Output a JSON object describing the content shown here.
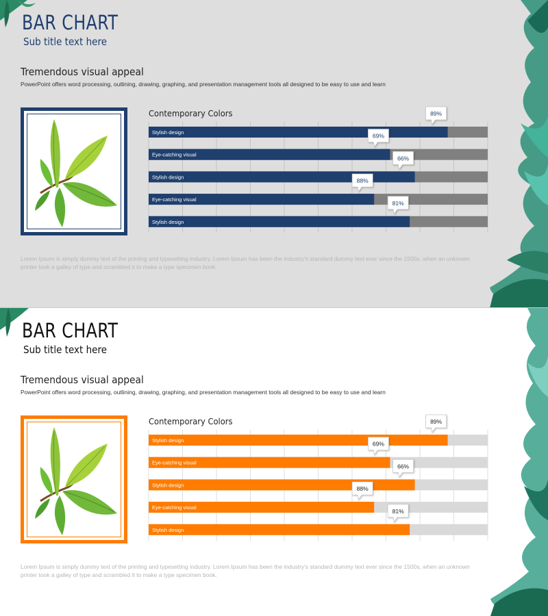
{
  "slides": [
    {
      "theme": "blue",
      "title": "BAR CHART",
      "subtitle": "Sub title text here",
      "heading": "Tremendous visual appeal",
      "description": "PowerPoint offers word processing, outlining, drawing, graphing, and presentation management tools all designed to be easy to use and learn",
      "lorem": "Lorem Ipsum is simply dummy text of the printing and typesetting industry. Lorem Ipsum has been the industry's standard dummy text ever since the 1500s, when an unknown printer took a galley of type and scrambled it to make a type specimen book.",
      "colors": {
        "title": "#1f3f6e",
        "subtitle": "#1f3f6e",
        "bar": "#1f3f6e",
        "track": "#808080",
        "frame": "#1f3f6e",
        "callout_text": "#1f3f6e",
        "bar_label": "#ffffff"
      }
    },
    {
      "theme": "orange",
      "title": "BAR CHART",
      "subtitle": "Sub title text here",
      "heading": "Tremendous visual appeal",
      "description": "PowerPoint offers word processing, outlining, drawing, graphing, and presentation management tools all designed to be easy to use and learn",
      "lorem": "Lorem Ipsum is simply dummy text of the printing and typesetting industry. Lorem Ipsum has been the industry's standard dummy text ever since the 1500s, when an unknown printer took a galley of type and scrambled it to make a type specimen book.",
      "colors": {
        "title": "#111111",
        "subtitle": "#111111",
        "bar": "#ff7c00",
        "track": "#d9d9d9",
        "frame": "#ff7c00",
        "callout_text": "#222222",
        "bar_label": "#ffffff"
      }
    }
  ],
  "chart_data": [
    {
      "type": "bar",
      "orientation": "horizontal",
      "title": "Contemporary Colors",
      "categories": [
        "Stylish design",
        "Eye-catching visual",
        "Stylish design",
        "Eye-catching visual",
        "Stylish design"
      ],
      "values": [
        89,
        69,
        66,
        88,
        81
      ],
      "value_labels": [
        "89%",
        "69%",
        "66%",
        "88%",
        "81%"
      ],
      "bar_fill_fraction": [
        0.882,
        0.712,
        0.785,
        0.665,
        0.77
      ],
      "grid": true
    },
    {
      "type": "bar",
      "orientation": "horizontal",
      "title": "Contemporary Colors",
      "categories": [
        "Stylish design",
        "Eye-catching visual",
        "Stylish design",
        "Eye-catching visual",
        "Stylish design"
      ],
      "values": [
        89,
        69,
        66,
        88,
        81
      ],
      "value_labels": [
        "89%",
        "69%",
        "66%",
        "88%",
        "81%"
      ],
      "bar_fill_fraction": [
        0.882,
        0.712,
        0.785,
        0.665,
        0.77
      ],
      "grid": true
    }
  ]
}
